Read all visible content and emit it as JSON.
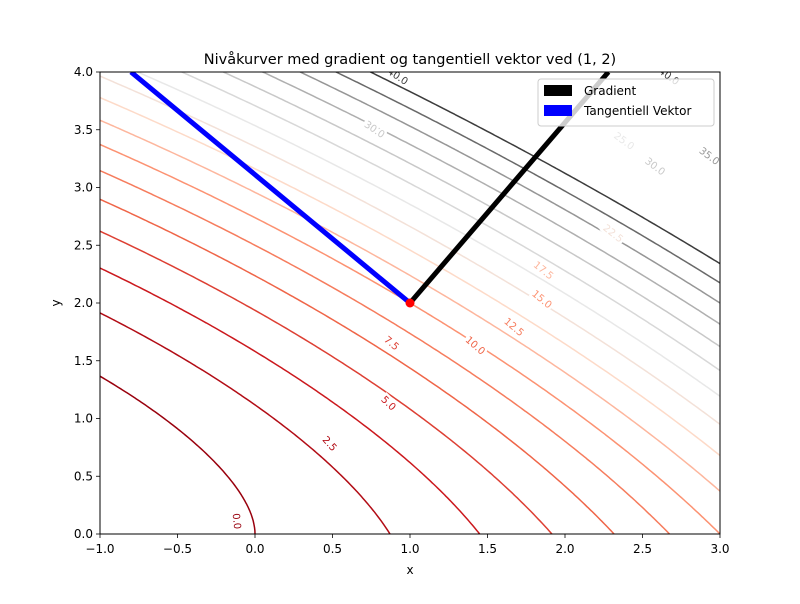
{
  "chart_data": {
    "type": "contour",
    "title": "Nivåkurver med gradient og tangentiell vektor ved (1, 2)",
    "xlabel": "x",
    "ylabel": "y",
    "xlim": [
      -1.0,
      3.0
    ],
    "ylim": [
      0.0,
      4.0
    ],
    "xticks": [
      "−1.0",
      "−0.5",
      "0.0",
      "0.5",
      "1.0",
      "1.5",
      "2.0",
      "2.5",
      "3.0"
    ],
    "yticks": [
      "0.0",
      "0.5",
      "1.0",
      "1.5",
      "2.0",
      "2.5",
      "3.0",
      "3.5",
      "4.0"
    ],
    "grid": false,
    "legend_position": "top-right",
    "contour_levels": [
      0.0,
      2.5,
      5.0,
      7.5,
      10.0,
      12.5,
      15.0,
      17.5,
      20.0,
      22.5,
      25.0,
      27.5,
      30.0,
      32.5,
      35.0,
      37.5,
      40.0
    ],
    "contour_labels": [
      {
        "text": "0.0",
        "x": -0.12,
        "y": 0.11
      },
      {
        "text": "2.5",
        "x": 0.48,
        "y": 0.78
      },
      {
        "text": "5.0",
        "x": 0.86,
        "y": 1.13
      },
      {
        "text": "7.5",
        "x": 0.88,
        "y": 1.65
      },
      {
        "text": "10.0",
        "x": 1.42,
        "y": 1.63
      },
      {
        "text": "12.5",
        "x": 1.67,
        "y": 1.79
      },
      {
        "text": "15.0",
        "x": 1.85,
        "y": 2.03
      },
      {
        "text": "17.5",
        "x": 1.86,
        "y": 2.28
      },
      {
        "text": "22.5",
        "x": 2.31,
        "y": 2.6
      },
      {
        "text": "25.0",
        "x": 2.38,
        "y": 3.4
      },
      {
        "text": "30.0",
        "x": 0.77,
        "y": 3.5
      },
      {
        "text": "30.0",
        "x": 2.58,
        "y": 3.18
      },
      {
        "text": "35.0",
        "x": 2.93,
        "y": 3.27
      },
      {
        "text": "40.0",
        "x": 0.92,
        "y": 3.96
      },
      {
        "text": "40.0",
        "x": 2.67,
        "y": 3.96
      }
    ],
    "point": {
      "x": 1,
      "y": 2
    },
    "series": [
      {
        "name": "Gradient",
        "color": "#000000",
        "x": [
          1.0,
          2.28
        ],
        "y": [
          2.0,
          4.0
        ]
      },
      {
        "name": "Tangentiell Vektor",
        "color": "#0000ff",
        "x": [
          1.0,
          -0.8
        ],
        "y": [
          2.0,
          4.0
        ]
      }
    ],
    "point_color": "#ff0000"
  }
}
